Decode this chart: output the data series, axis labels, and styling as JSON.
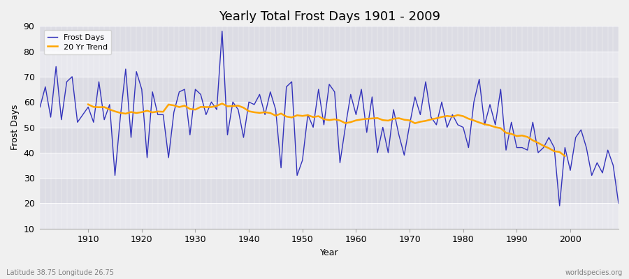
{
  "title": "Yearly Total Frost Days 1901 - 2009",
  "xlabel": "Year",
  "ylabel": "Frost Days",
  "caption_left": "Latitude 38.75 Longitude 26.75",
  "caption_right": "worldspecies.org",
  "bg_color": "#f0f0f0",
  "plot_bg_color_light": "#e8e8ee",
  "plot_bg_color_dark": "#dcdce4",
  "line_color": "#3333bb",
  "trend_color": "#ffa500",
  "ylim": [
    10,
    90
  ],
  "yticks": [
    10,
    20,
    30,
    40,
    50,
    60,
    70,
    80,
    90
  ],
  "xlim": [
    1901,
    2009
  ],
  "xticks": [
    1910,
    1920,
    1930,
    1940,
    1950,
    1960,
    1970,
    1980,
    1990,
    2000
  ],
  "years": [
    1901,
    1902,
    1903,
    1904,
    1905,
    1906,
    1907,
    1908,
    1909,
    1910,
    1911,
    1912,
    1913,
    1914,
    1915,
    1916,
    1917,
    1918,
    1919,
    1920,
    1921,
    1922,
    1923,
    1924,
    1925,
    1926,
    1927,
    1928,
    1929,
    1930,
    1931,
    1932,
    1933,
    1934,
    1935,
    1936,
    1937,
    1938,
    1939,
    1940,
    1941,
    1942,
    1943,
    1944,
    1945,
    1946,
    1947,
    1948,
    1949,
    1950,
    1951,
    1952,
    1953,
    1954,
    1955,
    1956,
    1957,
    1958,
    1959,
    1960,
    1961,
    1962,
    1963,
    1964,
    1965,
    1966,
    1967,
    1968,
    1969,
    1970,
    1971,
    1972,
    1973,
    1974,
    1975,
    1976,
    1977,
    1978,
    1979,
    1980,
    1981,
    1982,
    1983,
    1984,
    1985,
    1986,
    1987,
    1988,
    1989,
    1990,
    1991,
    1992,
    1993,
    1994,
    1995,
    1996,
    1997,
    1998,
    1999,
    2000,
    2001,
    2002,
    2003,
    2004,
    2005,
    2006,
    2007,
    2008,
    2009
  ],
  "frost_days": [
    58,
    66,
    54,
    74,
    53,
    68,
    70,
    52,
    55,
    58,
    52,
    68,
    53,
    59,
    31,
    54,
    73,
    46,
    72,
    65,
    38,
    64,
    55,
    55,
    38,
    56,
    64,
    65,
    47,
    65,
    63,
    55,
    60,
    57,
    88,
    47,
    60,
    57,
    46,
    60,
    59,
    63,
    55,
    64,
    57,
    34,
    66,
    68,
    31,
    37,
    55,
    50,
    65,
    51,
    67,
    64,
    36,
    50,
    63,
    55,
    65,
    48,
    62,
    40,
    50,
    40,
    57,
    47,
    39,
    51,
    62,
    55,
    68,
    54,
    51,
    60,
    50,
    55,
    51,
    50,
    42,
    60,
    69,
    51,
    59,
    51,
    65,
    41,
    52,
    42,
    42,
    41,
    52,
    40,
    42,
    46,
    42,
    19,
    42,
    33,
    46,
    49,
    42,
    31,
    36,
    32,
    41,
    35,
    20
  ],
  "legend_labels": [
    "Frost Days",
    "20 Yr Trend"
  ],
  "trend_window": 20
}
